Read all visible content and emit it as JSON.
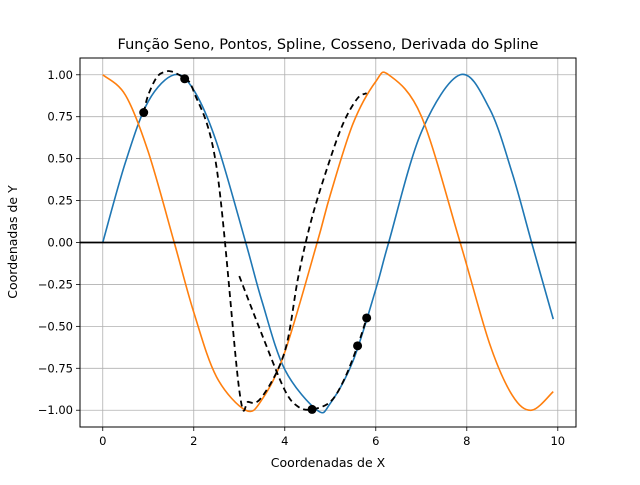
{
  "chart_data": {
    "type": "line",
    "title": "Função Seno, Pontos, Spline, Cosseno, Derivada do Spline",
    "xlabel": "Coordenadas de X",
    "ylabel": "Coordenadas de Y",
    "xlim": [
      -0.5,
      10.4
    ],
    "ylim": [
      -1.1,
      1.1
    ],
    "grid": true,
    "xticks": [
      0,
      2,
      4,
      6,
      8,
      10
    ],
    "xtick_labels": [
      "0",
      "2",
      "4",
      "6",
      "8",
      "10"
    ],
    "yticks": [
      -1.0,
      -0.75,
      -0.5,
      -0.25,
      0.0,
      0.25,
      0.5,
      0.75,
      1.0
    ],
    "ytick_labels": [
      "−1.00",
      "−0.75",
      "−0.50",
      "−0.25",
      "0.00",
      "0.25",
      "0.50",
      "0.75",
      "1.00"
    ],
    "series": [
      {
        "kind": "function",
        "color": "#1f77b4",
        "x": [
          0,
          0.5,
          1.0,
          1.5708,
          2.0,
          2.5,
          3.1416,
          3.5,
          4.0,
          4.7124,
          5.0,
          5.5,
          6.0,
          6.2832,
          7.0,
          7.854,
          8.5,
          9.0,
          9.4248,
          9.9
        ],
        "y": [
          0,
          0.479,
          0.841,
          1.0,
          0.909,
          0.598,
          0.0,
          -0.351,
          -0.757,
          -1.0,
          -0.959,
          -0.706,
          -0.279,
          0.0,
          0.657,
          1.0,
          0.798,
          0.412,
          0.0,
          -0.457
        ]
      },
      {
        "kind": "function",
        "color": "#ff7f0e",
        "x": [
          0,
          0.5,
          1.0,
          1.5708,
          2.0,
          2.5,
          3.1416,
          3.5,
          4.0,
          4.7124,
          5.0,
          5.5,
          6.0,
          6.2832,
          7.0,
          7.854,
          8.5,
          9.0,
          9.4248,
          9.9
        ],
        "y": [
          1.0,
          0.878,
          0.54,
          0.0,
          -0.416,
          -0.801,
          -1.0,
          -0.936,
          -0.654,
          0.0,
          0.284,
          0.709,
          0.96,
          1.0,
          0.754,
          0.0,
          -0.602,
          -0.911,
          -1.0,
          -0.889
        ]
      },
      {
        "kind": "points",
        "color": "#000000",
        "x": [
          0.9,
          1.8,
          4.6,
          5.6,
          5.8
        ],
        "y": [
          0.775,
          0.976,
          -0.995,
          -0.616,
          -0.45
        ]
      },
      {
        "kind": "spline",
        "color": "#000000",
        "dashed": true,
        "x": [
          0.9,
          1.0,
          1.2,
          1.4,
          1.5,
          1.6,
          1.8,
          2.0,
          2.5,
          3.0,
          3.2,
          3.5,
          4.0,
          4.3,
          4.6,
          5.0,
          5.3,
          5.6,
          5.8
        ],
        "y": [
          0.775,
          0.88,
          0.99,
          1.02,
          1.02,
          1.01,
          0.976,
          0.9,
          0.45,
          -0.88,
          -0.95,
          -0.92,
          -0.65,
          -0.2,
          0.15,
          0.5,
          0.72,
          0.86,
          0.89
        ]
      },
      {
        "kind": "spline",
        "color": "#000000",
        "dashed": true,
        "x": [
          3.0,
          3.5,
          4.0,
          4.3,
          4.6,
          5.0,
          5.3,
          5.6,
          5.8
        ],
        "y": [
          -0.2,
          -0.55,
          -0.88,
          -0.98,
          -0.995,
          -0.95,
          -0.82,
          -0.616,
          -0.45
        ]
      }
    ],
    "hline": {
      "y": 0.0,
      "color": "#000000"
    }
  }
}
